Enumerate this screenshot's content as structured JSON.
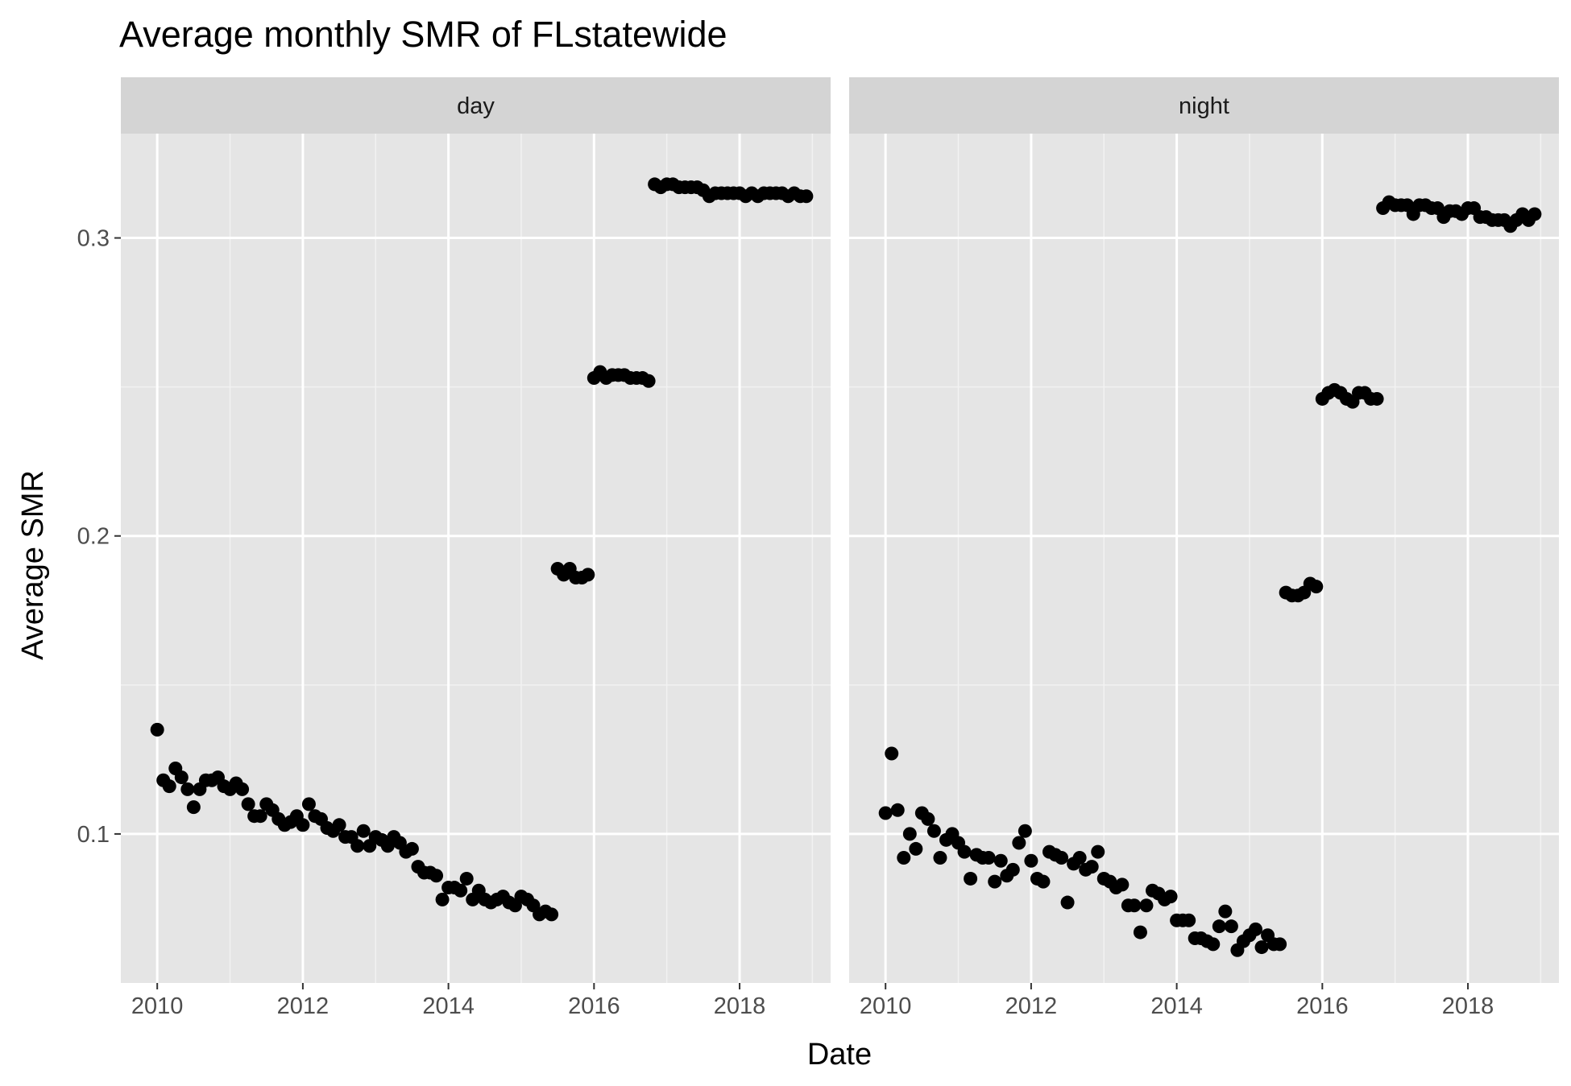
{
  "chart_data": {
    "type": "scatter",
    "title": "Average monthly SMR of FLstatewide",
    "xlabel": "Date",
    "ylabel": "Average SMR",
    "x_ticks": [
      "2010",
      "2012",
      "2014",
      "2016",
      "2018"
    ],
    "y_ticks": [
      "0.1",
      "0.2",
      "0.3"
    ],
    "xlim": [
      "2009-07",
      "2019-04"
    ],
    "ylim": [
      0.05,
      0.335
    ],
    "grid": true,
    "legend": "none",
    "panel_background": "#e5e5e5",
    "strip_background": "#d4d4d4",
    "point_color": "#000000",
    "facets": [
      {
        "name": "day",
        "x": [
          "2010-01",
          "2010-02",
          "2010-03",
          "2010-04",
          "2010-05",
          "2010-06",
          "2010-07",
          "2010-08",
          "2010-09",
          "2010-10",
          "2010-11",
          "2010-12",
          "2011-01",
          "2011-02",
          "2011-03",
          "2011-04",
          "2011-05",
          "2011-06",
          "2011-07",
          "2011-08",
          "2011-09",
          "2011-10",
          "2011-11",
          "2011-12",
          "2012-01",
          "2012-02",
          "2012-03",
          "2012-04",
          "2012-05",
          "2012-06",
          "2012-07",
          "2012-08",
          "2012-09",
          "2012-10",
          "2012-11",
          "2012-12",
          "2013-01",
          "2013-02",
          "2013-03",
          "2013-04",
          "2013-05",
          "2013-06",
          "2013-07",
          "2013-08",
          "2013-09",
          "2013-10",
          "2013-11",
          "2013-12",
          "2014-01",
          "2014-02",
          "2014-03",
          "2014-04",
          "2014-05",
          "2014-06",
          "2014-07",
          "2014-08",
          "2014-09",
          "2014-10",
          "2014-11",
          "2014-12",
          "2015-01",
          "2015-02",
          "2015-03",
          "2015-04",
          "2015-05",
          "2015-06",
          "2015-07",
          "2015-08",
          "2015-09",
          "2015-10",
          "2015-11",
          "2015-12",
          "2016-01",
          "2016-02",
          "2016-03",
          "2016-04",
          "2016-05",
          "2016-06",
          "2016-07",
          "2016-08",
          "2016-09",
          "2016-10",
          "2016-11",
          "2016-12",
          "2017-01",
          "2017-02",
          "2017-03",
          "2017-04",
          "2017-05",
          "2017-06",
          "2017-07",
          "2017-08",
          "2017-09",
          "2017-10",
          "2017-11",
          "2017-12",
          "2018-01",
          "2018-02",
          "2018-03",
          "2018-04",
          "2018-05",
          "2018-06",
          "2018-07",
          "2018-08",
          "2018-09",
          "2018-10",
          "2018-11",
          "2018-12"
        ],
        "y": [
          0.135,
          0.118,
          0.116,
          0.122,
          0.119,
          0.115,
          0.109,
          0.115,
          0.118,
          0.118,
          0.119,
          0.116,
          0.115,
          0.117,
          0.115,
          0.11,
          0.106,
          0.106,
          0.11,
          0.108,
          0.105,
          0.103,
          0.104,
          0.106,
          0.103,
          0.11,
          0.106,
          0.105,
          0.102,
          0.101,
          0.103,
          0.099,
          0.099,
          0.096,
          0.101,
          0.096,
          0.099,
          0.098,
          0.096,
          0.099,
          0.097,
          0.094,
          0.095,
          0.089,
          0.087,
          0.087,
          0.086,
          0.078,
          0.082,
          0.082,
          0.081,
          0.085,
          0.078,
          0.081,
          0.078,
          0.077,
          0.078,
          0.079,
          0.077,
          0.076,
          0.079,
          0.078,
          0.076,
          0.073,
          0.074,
          0.073,
          0.189,
          0.187,
          0.189,
          0.186,
          0.186,
          0.187,
          0.253,
          0.255,
          0.253,
          0.254,
          0.254,
          0.254,
          0.253,
          0.253,
          0.253,
          0.252,
          0.318,
          0.317,
          0.318,
          0.318,
          0.317,
          0.317,
          0.317,
          0.317,
          0.316,
          0.314,
          0.315,
          0.315,
          0.315,
          0.315,
          0.315,
          0.314,
          0.315,
          0.314,
          0.315,
          0.315,
          0.315,
          0.315,
          0.314,
          0.315,
          0.314,
          0.314
        ]
      },
      {
        "name": "night",
        "x": [
          "2010-01",
          "2010-02",
          "2010-03",
          "2010-04",
          "2010-05",
          "2010-06",
          "2010-07",
          "2010-08",
          "2010-09",
          "2010-10",
          "2010-11",
          "2010-12",
          "2011-01",
          "2011-02",
          "2011-03",
          "2011-04",
          "2011-05",
          "2011-06",
          "2011-07",
          "2011-08",
          "2011-09",
          "2011-10",
          "2011-11",
          "2011-12",
          "2012-01",
          "2012-02",
          "2012-03",
          "2012-04",
          "2012-05",
          "2012-06",
          "2012-07",
          "2012-08",
          "2012-09",
          "2012-10",
          "2012-11",
          "2012-12",
          "2013-01",
          "2013-02",
          "2013-03",
          "2013-04",
          "2013-05",
          "2013-06",
          "2013-07",
          "2013-08",
          "2013-09",
          "2013-10",
          "2013-11",
          "2013-12",
          "2014-01",
          "2014-02",
          "2014-03",
          "2014-04",
          "2014-05",
          "2014-06",
          "2014-07",
          "2014-08",
          "2014-09",
          "2014-10",
          "2014-11",
          "2014-12",
          "2015-01",
          "2015-02",
          "2015-03",
          "2015-04",
          "2015-05",
          "2015-06",
          "2015-07",
          "2015-08",
          "2015-09",
          "2015-10",
          "2015-11",
          "2015-12",
          "2016-01",
          "2016-02",
          "2016-03",
          "2016-04",
          "2016-05",
          "2016-06",
          "2016-07",
          "2016-08",
          "2016-09",
          "2016-10",
          "2016-11",
          "2016-12",
          "2017-01",
          "2017-02",
          "2017-03",
          "2017-04",
          "2017-05",
          "2017-06",
          "2017-07",
          "2017-08",
          "2017-09",
          "2017-10",
          "2017-11",
          "2017-12",
          "2018-01",
          "2018-02",
          "2018-03",
          "2018-04",
          "2018-05",
          "2018-06",
          "2018-07",
          "2018-08",
          "2018-09",
          "2018-10",
          "2018-11",
          "2018-12"
        ],
        "y": [
          0.107,
          0.127,
          0.108,
          0.092,
          0.1,
          0.095,
          0.107,
          0.105,
          0.101,
          0.092,
          0.098,
          0.1,
          0.097,
          0.094,
          0.085,
          0.093,
          0.092,
          0.092,
          0.084,
          0.091,
          0.086,
          0.088,
          0.097,
          0.101,
          0.091,
          0.085,
          0.084,
          0.094,
          0.093,
          0.092,
          0.077,
          0.09,
          0.092,
          0.088,
          0.089,
          0.094,
          0.085,
          0.084,
          0.082,
          0.083,
          0.076,
          0.076,
          0.067,
          0.076,
          0.081,
          0.08,
          0.078,
          0.079,
          0.071,
          0.071,
          0.071,
          0.065,
          0.065,
          0.064,
          0.063,
          0.069,
          0.074,
          0.069,
          0.061,
          0.064,
          0.066,
          0.068,
          0.062,
          0.066,
          0.063,
          0.063,
          0.181,
          0.18,
          0.18,
          0.181,
          0.184,
          0.183,
          0.246,
          0.248,
          0.249,
          0.248,
          0.246,
          0.245,
          0.248,
          0.248,
          0.246,
          0.246,
          0.31,
          0.312,
          0.311,
          0.311,
          0.311,
          0.308,
          0.311,
          0.311,
          0.31,
          0.31,
          0.307,
          0.309,
          0.309,
          0.308,
          0.31,
          0.31,
          0.307,
          0.307,
          0.306,
          0.306,
          0.306,
          0.304,
          0.306,
          0.308,
          0.306,
          0.308
        ]
      }
    ]
  }
}
